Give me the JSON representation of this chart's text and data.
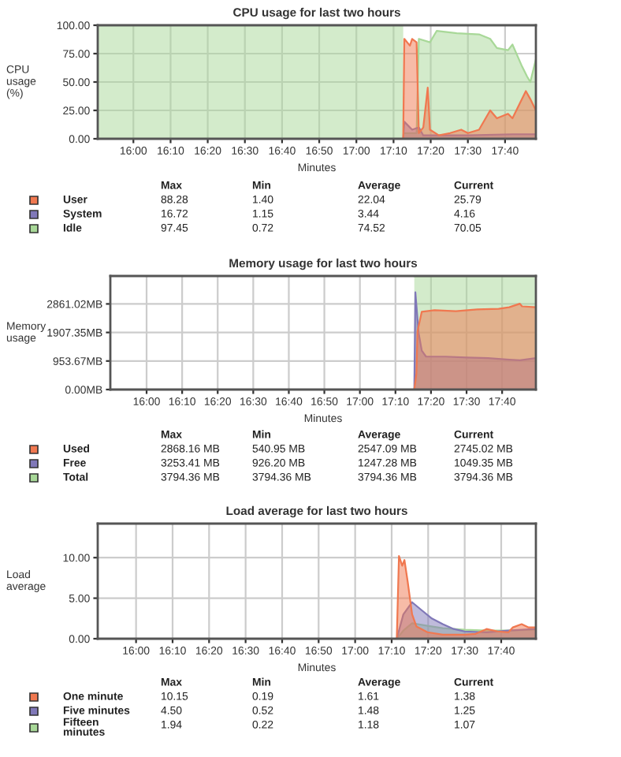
{
  "chart_data": [
    {
      "type": "area",
      "title": "CPU usage for last two hours",
      "xlabel": "Minutes",
      "ylabel": "CPU\nusage\n(%)",
      "xlim": [
        15.84,
        17.805
      ],
      "ylim": [
        0,
        100
      ],
      "xticks": [
        {
          "value": 16.0,
          "label": "16:00"
        },
        {
          "value": 16.1667,
          "label": "16:10"
        },
        {
          "value": 16.3333,
          "label": "16:20"
        },
        {
          "value": 16.5,
          "label": "16:30"
        },
        {
          "value": 16.6667,
          "label": "16:40"
        },
        {
          "value": 16.8333,
          "label": "16:50"
        },
        {
          "value": 17.0,
          "label": "17:00"
        },
        {
          "value": 17.1667,
          "label": "17:10"
        },
        {
          "value": 17.3333,
          "label": "17:20"
        },
        {
          "value": 17.5,
          "label": "17:30"
        },
        {
          "value": 17.6667,
          "label": "17:40"
        }
      ],
      "yticks": [
        {
          "value": 0,
          "label": "0.00"
        },
        {
          "value": 25,
          "label": "25.00"
        },
        {
          "value": 50,
          "label": "50.00"
        },
        {
          "value": 75,
          "label": "75.00"
        },
        {
          "value": 100,
          "label": "100.00"
        }
      ],
      "grid": true,
      "legend": "bottom",
      "series": [
        {
          "name": "User",
          "color": "#f07850",
          "x": [
            17.21,
            17.215,
            17.24,
            17.25,
            17.27,
            17.28,
            17.3,
            17.32,
            17.33,
            17.37,
            17.42,
            17.47,
            17.5,
            17.55,
            17.6,
            17.63,
            17.68,
            17.7,
            17.73,
            17.76,
            17.78,
            17.805
          ],
          "values": [
            0,
            88,
            82,
            88,
            85,
            5,
            10,
            45,
            8,
            3,
            5,
            8,
            5,
            8,
            25,
            18,
            22,
            18,
            30,
            42,
            35,
            25
          ]
        },
        {
          "name": "System",
          "color": "#8078b8",
          "x": [
            17.21,
            17.215,
            17.25,
            17.28,
            17.3,
            17.5,
            17.7,
            17.805
          ],
          "values": [
            0,
            15,
            8,
            10,
            3,
            3,
            4,
            4
          ]
        },
        {
          "name": "Idle",
          "color": "#a8d898",
          "x": [
            17.215,
            17.27,
            17.28,
            17.33,
            17.36,
            17.45,
            17.55,
            17.6,
            17.63,
            17.68,
            17.7,
            17.74,
            17.765,
            17.78,
            17.805
          ],
          "values": [
            5,
            5,
            88,
            85,
            95,
            93,
            92,
            88,
            80,
            78,
            83,
            65,
            55,
            50,
            70
          ]
        }
      ],
      "bands": [
        {
          "axis": "x",
          "from": 15.84,
          "to": 17.21,
          "color": "#a8d898"
        }
      ],
      "annotations": [
        "Max",
        "Min",
        "Average",
        "Current",
        "88.28",
        "1.40",
        "22.04",
        "25.79",
        "16.72",
        "1.15",
        "3.44",
        "4.16",
        "97.45",
        "0.72",
        "74.52",
        "70.05"
      ]
    },
    {
      "type": "area",
      "title": "Memory usage for last two hours",
      "xlabel": "Minutes",
      "ylabel": "Memory\nusage",
      "xlim": [
        15.83,
        17.825
      ],
      "ylim": [
        0,
        3794.36
      ],
      "xticks": [
        {
          "value": 16.0,
          "label": "16:00"
        },
        {
          "value": 16.1667,
          "label": "16:10"
        },
        {
          "value": 16.3333,
          "label": "16:20"
        },
        {
          "value": 16.5,
          "label": "16:30"
        },
        {
          "value": 16.6667,
          "label": "16:40"
        },
        {
          "value": 16.8333,
          "label": "16:50"
        },
        {
          "value": 17.0,
          "label": "17:00"
        },
        {
          "value": 17.1667,
          "label": "17:10"
        },
        {
          "value": 17.3333,
          "label": "17:20"
        },
        {
          "value": 17.5,
          "label": "17:30"
        },
        {
          "value": 17.6667,
          "label": "17:40"
        }
      ],
      "yticks": [
        {
          "value": 0,
          "label": "0.00MB"
        },
        {
          "value": 953.67,
          "label": "953.67MB"
        },
        {
          "value": 1907.35,
          "label": "1907.35MB"
        },
        {
          "value": 2861.02,
          "label": "2861.02MB"
        }
      ],
      "grid": true,
      "legend": "bottom",
      "series": [
        {
          "name": "Used",
          "color": "#f07850",
          "x": [
            17.255,
            17.265,
            17.27,
            17.29,
            17.35,
            17.45,
            17.55,
            17.65,
            17.7,
            17.75,
            17.76,
            17.825
          ],
          "values": [
            0,
            540,
            1950,
            2600,
            2650,
            2620,
            2680,
            2700,
            2750,
            2870,
            2780,
            2750
          ]
        },
        {
          "name": "Free",
          "color": "#8078b8",
          "x": [
            17.255,
            17.26,
            17.275,
            17.29,
            17.31,
            17.4,
            17.5,
            17.6,
            17.7,
            17.75,
            17.825
          ],
          "values": [
            0,
            3250,
            1900,
            1300,
            1100,
            1100,
            1070,
            1050,
            1000,
            980,
            1050
          ]
        },
        {
          "name": "Total",
          "color": "#a8d898",
          "x": [
            17.255,
            17.825
          ],
          "values": [
            3790,
            3790
          ]
        }
      ],
      "annotations": [
        "Max",
        "Min",
        "Average",
        "Current",
        "2868.16 MB",
        "540.95 MB",
        "2547.09 MB",
        "2745.02 MB",
        "3253.41 MB",
        "926.20 MB",
        "1247.28 MB",
        "1049.35 MB",
        "3794.36 MB",
        "3794.36 MB",
        "3794.36 MB",
        "3794.36 MB"
      ]
    },
    {
      "type": "area",
      "title": "Load average for last two hours",
      "xlabel": "Minutes",
      "ylabel": "Load\naverage",
      "xlim": [
        15.825,
        17.825
      ],
      "ylim": [
        0,
        14.2
      ],
      "xticks": [
        {
          "value": 16.0,
          "label": "16:00"
        },
        {
          "value": 16.1667,
          "label": "16:10"
        },
        {
          "value": 16.3333,
          "label": "16:20"
        },
        {
          "value": 16.5,
          "label": "16:30"
        },
        {
          "value": 16.6667,
          "label": "16:40"
        },
        {
          "value": 16.8333,
          "label": "16:50"
        },
        {
          "value": 17.0,
          "label": "17:00"
        },
        {
          "value": 17.1667,
          "label": "17:10"
        },
        {
          "value": 17.3333,
          "label": "17:20"
        },
        {
          "value": 17.5,
          "label": "17:30"
        },
        {
          "value": 17.6667,
          "label": "17:40"
        }
      ],
      "yticks": [
        {
          "value": 0,
          "label": "0.00"
        },
        {
          "value": 5,
          "label": "5.00"
        },
        {
          "value": 10,
          "label": "10.00"
        }
      ],
      "grid": true,
      "legend": "bottom",
      "series": [
        {
          "name": "One minute",
          "color": "#f07850",
          "x": [
            17.19,
            17.2,
            17.215,
            17.225,
            17.24,
            17.26,
            17.28,
            17.33,
            17.4,
            17.5,
            17.55,
            17.6,
            17.65,
            17.7,
            17.72,
            17.76,
            17.79,
            17.825
          ],
          "values": [
            0,
            10.2,
            9,
            9.7,
            7,
            3,
            1.5,
            0.8,
            0.5,
            0.5,
            0.6,
            1.2,
            0.9,
            0.8,
            1.4,
            1.8,
            1.4,
            1.4
          ]
        },
        {
          "name": "Five minutes",
          "color": "#8078b8",
          "x": [
            17.19,
            17.22,
            17.26,
            17.3,
            17.35,
            17.4,
            17.45,
            17.5,
            17.6,
            17.7,
            17.825
          ],
          "values": [
            0,
            3,
            4.5,
            3.6,
            2.5,
            1.8,
            1.2,
            0.9,
            0.8,
            1.0,
            1.2
          ]
        },
        {
          "name": "Fifteen\nminutes",
          "color": "#a8d898",
          "x": [
            17.19,
            17.22,
            17.26,
            17.33,
            17.4,
            17.5,
            17.6,
            17.7,
            17.825
          ],
          "values": [
            0,
            1,
            1.9,
            1.6,
            1.3,
            1.1,
            1.0,
            1.0,
            1.1
          ]
        }
      ],
      "annotations": [
        "Max",
        "Min",
        "Average",
        "Current",
        "10.15",
        "0.19",
        "1.61",
        "1.38",
        "4.50",
        "0.52",
        "1.48",
        "1.25",
        "1.94",
        "0.22",
        "1.18",
        "1.07"
      ]
    }
  ]
}
